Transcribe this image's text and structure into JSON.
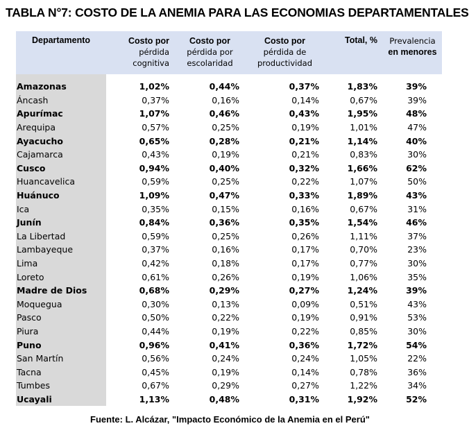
{
  "title": "TABLA N°7: COSTO DE LA ANEMIA PARA LAS ECONOMIAS DEPARTAMENTALES",
  "headers": {
    "dept": "Departamento",
    "cog": [
      "Costo por",
      "pérdida",
      "cognitiva"
    ],
    "esc": [
      "Costo por",
      "pérdida por",
      "escolaridad"
    ],
    "prod": [
      "Costo por",
      "pérdida de",
      "productividad"
    ],
    "total": "Total, %",
    "prev": [
      "Prevalencia",
      "en menores"
    ]
  },
  "rows": [
    {
      "dept": "Amazonas",
      "cog": "1,02%",
      "esc": "0,44%",
      "prod": "0,37%",
      "total": "1,83%",
      "prev": "39%",
      "bold": true
    },
    {
      "dept": "Áncash",
      "cog": "0,37%",
      "esc": "0,16%",
      "prod": "0,14%",
      "total": "0,67%",
      "prev": "39%",
      "bold": false
    },
    {
      "dept": "Apurímac",
      "cog": "1,07%",
      "esc": "0,46%",
      "prod": "0,43%",
      "total": "1,95%",
      "prev": "48%",
      "bold": true
    },
    {
      "dept": "Arequipa",
      "cog": "0,57%",
      "esc": "0,25%",
      "prod": "0,19%",
      "total": "1,01%",
      "prev": "47%",
      "bold": false
    },
    {
      "dept": "Ayacucho",
      "cog": "0,65%",
      "esc": "0,28%",
      "prod": "0,21%",
      "total": "1,14%",
      "prev": "40%",
      "bold": true
    },
    {
      "dept": "Cajamarca",
      "cog": "0,43%",
      "esc": "0,19%",
      "prod": "0,21%",
      "total": "0,83%",
      "prev": "30%",
      "bold": false
    },
    {
      "dept": "Cusco",
      "cog": "0,94%",
      "esc": "0,40%",
      "prod": "0,32%",
      "total": "1,66%",
      "prev": "62%",
      "bold": true
    },
    {
      "dept": "Huancavelica",
      "cog": "0,59%",
      "esc": "0,25%",
      "prod": "0,22%",
      "total": "1,07%",
      "prev": "50%",
      "bold": false
    },
    {
      "dept": "Huánuco",
      "cog": "1,09%",
      "esc": "0,47%",
      "prod": "0,33%",
      "total": "1,89%",
      "prev": "43%",
      "bold": true
    },
    {
      "dept": "Ica",
      "cog": "0,35%",
      "esc": "0,15%",
      "prod": "0,16%",
      "total": "0,67%",
      "prev": "31%",
      "bold": false
    },
    {
      "dept": "Junín",
      "cog": "0,84%",
      "esc": "0,36%",
      "prod": "0,35%",
      "total": "1,54%",
      "prev": "46%",
      "bold": true
    },
    {
      "dept": "La Libertad",
      "cog": "0,59%",
      "esc": "0,25%",
      "prod": "0,26%",
      "total": "1,11%",
      "prev": "37%",
      "bold": false
    },
    {
      "dept": "Lambayeque",
      "cog": "0,37%",
      "esc": "0,16%",
      "prod": "0,17%",
      "total": "0,70%",
      "prev": "23%",
      "bold": false
    },
    {
      "dept": "Lima",
      "cog": "0,42%",
      "esc": "0,18%",
      "prod": "0,17%",
      "total": "0,77%",
      "prev": "30%",
      "bold": false
    },
    {
      "dept": "Loreto",
      "cog": "0,61%",
      "esc": "0,26%",
      "prod": "0,19%",
      "total": "1,06%",
      "prev": "35%",
      "bold": false
    },
    {
      "dept": "Madre de Dios",
      "cog": "0,68%",
      "esc": "0,29%",
      "prod": "0,27%",
      "total": "1,24%",
      "prev": "39%",
      "bold": true
    },
    {
      "dept": "Moquegua",
      "cog": "0,30%",
      "esc": "0,13%",
      "prod": "0,09%",
      "total": "0,51%",
      "prev": "43%",
      "bold": false
    },
    {
      "dept": "Pasco",
      "cog": "0,50%",
      "esc": "0,22%",
      "prod": "0,19%",
      "total": "0,91%",
      "prev": "53%",
      "bold": false
    },
    {
      "dept": "Piura",
      "cog": "0,44%",
      "esc": "0,19%",
      "prod": "0,22%",
      "total": "0,85%",
      "prev": "30%",
      "bold": false
    },
    {
      "dept": "Puno",
      "cog": "0,96%",
      "esc": "0,41%",
      "prod": "0,36%",
      "total": "1,72%",
      "prev": "54%",
      "bold": true
    },
    {
      "dept": "San Martín",
      "cog": "0,56%",
      "esc": "0,24%",
      "prod": "0,24%",
      "total": "1,05%",
      "prev": "22%",
      "bold": false
    },
    {
      "dept": "Tacna",
      "cog": "0,45%",
      "esc": "0,19%",
      "prod": "0,14%",
      "total": "0,78%",
      "prev": "36%",
      "bold": false
    },
    {
      "dept": "Tumbes",
      "cog": "0,67%",
      "esc": "0,29%",
      "prod": "0,27%",
      "total": "1,22%",
      "prev": "34%",
      "bold": false
    },
    {
      "dept": "Ucayali",
      "cog": "1,13%",
      "esc": "0,48%",
      "prod": "0,31%",
      "total": "1,92%",
      "prev": "52%",
      "bold": true
    }
  ],
  "source": "Fuente: L. Alcázar, \"Impacto Económico de la Anemia en el Perú\"",
  "colors": {
    "header_bg": "#d9e1f2",
    "dept_bg": "#d9d9d9"
  }
}
